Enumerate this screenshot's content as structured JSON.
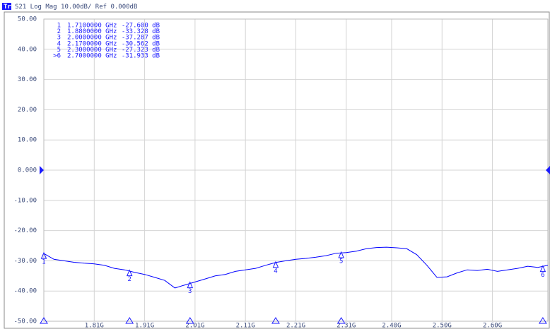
{
  "chart_data": {
    "type": "line",
    "trace": "Tr1",
    "title": "S21 Log Mag 10.00dB/ Ref 0.000dB",
    "xlim": [
      1.71,
      2.71
    ],
    "ylim": [
      -50,
      50
    ],
    "yticks": [
      {
        "value": 50,
        "label": "50.00"
      },
      {
        "value": 40,
        "label": "40.00"
      },
      {
        "value": 30,
        "label": "30.00"
      },
      {
        "value": 20,
        "label": "20.00"
      },
      {
        "value": 10,
        "label": "10.00"
      },
      {
        "value": 0,
        "label": "0.000"
      },
      {
        "value": -10,
        "label": "-10.00"
      },
      {
        "value": -20,
        "label": "-20.00"
      },
      {
        "value": -30,
        "label": "-30.00"
      },
      {
        "value": -40,
        "label": "-40.00"
      },
      {
        "value": -50,
        "label": "-50.00"
      }
    ],
    "xticks": [
      {
        "value": 1.81,
        "label": "1.81G"
      },
      {
        "value": 1.91,
        "label": "1.91G"
      },
      {
        "value": 2.01,
        "label": "2.01G"
      },
      {
        "value": 2.11,
        "label": "2.11G"
      },
      {
        "value": 2.21,
        "label": "2.21G"
      },
      {
        "value": 2.31,
        "label": "2.31G"
      },
      {
        "value": 2.4,
        "label": "2.40G"
      },
      {
        "value": 2.5,
        "label": "2.50G"
      },
      {
        "value": 2.6,
        "label": "2.60G"
      }
    ],
    "grid": true,
    "series": [
      {
        "name": "S21",
        "color": "#0000ff",
        "x": [
          1.71,
          1.73,
          1.75,
          1.77,
          1.79,
          1.81,
          1.83,
          1.85,
          1.87,
          1.89,
          1.91,
          1.93,
          1.95,
          1.97,
          1.99,
          2.01,
          2.03,
          2.05,
          2.07,
          2.09,
          2.11,
          2.13,
          2.15,
          2.17,
          2.19,
          2.21,
          2.23,
          2.25,
          2.27,
          2.29,
          2.31,
          2.33,
          2.35,
          2.37,
          2.39,
          2.41,
          2.43,
          2.45,
          2.47,
          2.49,
          2.51,
          2.53,
          2.55,
          2.57,
          2.59,
          2.61,
          2.63,
          2.65,
          2.67,
          2.69,
          2.71
        ],
        "values": [
          -27.6,
          -29.5,
          -30.0,
          -30.5,
          -30.8,
          -31.0,
          -31.5,
          -32.5,
          -33.0,
          -33.8,
          -34.5,
          -35.5,
          -36.5,
          -39.0,
          -38.0,
          -37.0,
          -36.0,
          -35.0,
          -34.5,
          -33.5,
          -33.0,
          -32.5,
          -31.5,
          -30.562,
          -30.0,
          -29.5,
          -29.2,
          -28.8,
          -28.3,
          -27.5,
          -27.3,
          -26.8,
          -26.0,
          -25.6,
          -25.5,
          -25.7,
          -26.0,
          -28.0,
          -31.5,
          -35.5,
          -35.3,
          -34.0,
          -33.0,
          -33.2,
          -32.8,
          -33.5,
          -33.0,
          -32.5,
          -31.8,
          -32.2,
          -31.5
        ]
      }
    ],
    "markers": [
      {
        "name": "1",
        "table_name": "1",
        "x": 1.71,
        "value": -27.6,
        "x_label": "1.7100000 GHz",
        "value_label": "-27.600 dB"
      },
      {
        "name": "2",
        "table_name": "2",
        "x": 1.88,
        "value": -33.328,
        "x_label": "1.8800000 GHz",
        "value_label": "-33.328 dB"
      },
      {
        "name": "3",
        "table_name": "3",
        "x": 2.0,
        "value": -37.287,
        "x_label": "2.0000000 GHz",
        "value_label": "-37.287 dB"
      },
      {
        "name": "4",
        "table_name": "4",
        "x": 2.17,
        "value": -30.562,
        "x_label": "2.1700000 GHz",
        "value_label": "-30.562 dB"
      },
      {
        "name": "5",
        "table_name": "5",
        "x": 2.3,
        "value": -27.323,
        "x_label": "2.3000000 GHz",
        "value_label": "-27.323 dB"
      },
      {
        "name": "6",
        "table_name": ">6",
        "x": 2.7,
        "value": -31.933,
        "x_label": "2.7000000 GHz",
        "value_label": "-31.933 dB"
      }
    ]
  }
}
